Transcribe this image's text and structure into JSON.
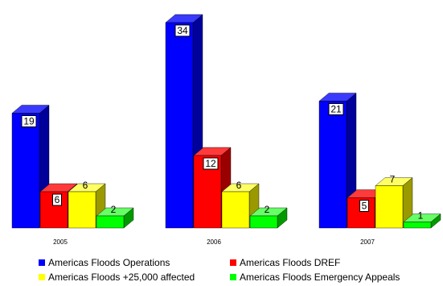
{
  "chart_data": {
    "type": "bar",
    "categories": [
      "2005",
      "2006",
      "2007"
    ],
    "series": [
      {
        "name": "Americas Floods Operations",
        "values": [
          19,
          34,
          21
        ],
        "color": "#0000ff",
        "side": "#00009a",
        "top": "#3a3aff"
      },
      {
        "name": "Americas Floods DREF",
        "values": [
          6,
          12,
          5
        ],
        "color": "#ff0000",
        "side": "#9a0000",
        "top": "#ff3a3a"
      },
      {
        "name": "Americas Floods +25,000 affected",
        "values": [
          6,
          6,
          7
        ],
        "color": "#ffff00",
        "side": "#9a9a00",
        "top": "#ffff66"
      },
      {
        "name": "Americas Floods Emergency Appeals",
        "values": [
          2,
          2,
          1
        ],
        "color": "#00ff00",
        "side": "#009a00",
        "top": "#66ff66"
      }
    ],
    "value_labels_boxed": [
      [
        true,
        true,
        false,
        false
      ],
      [
        true,
        true,
        false,
        false
      ],
      [
        true,
        true,
        false,
        false
      ]
    ],
    "ylim": [
      0,
      34
    ],
    "legend_position": "bottom",
    "grid": false
  }
}
